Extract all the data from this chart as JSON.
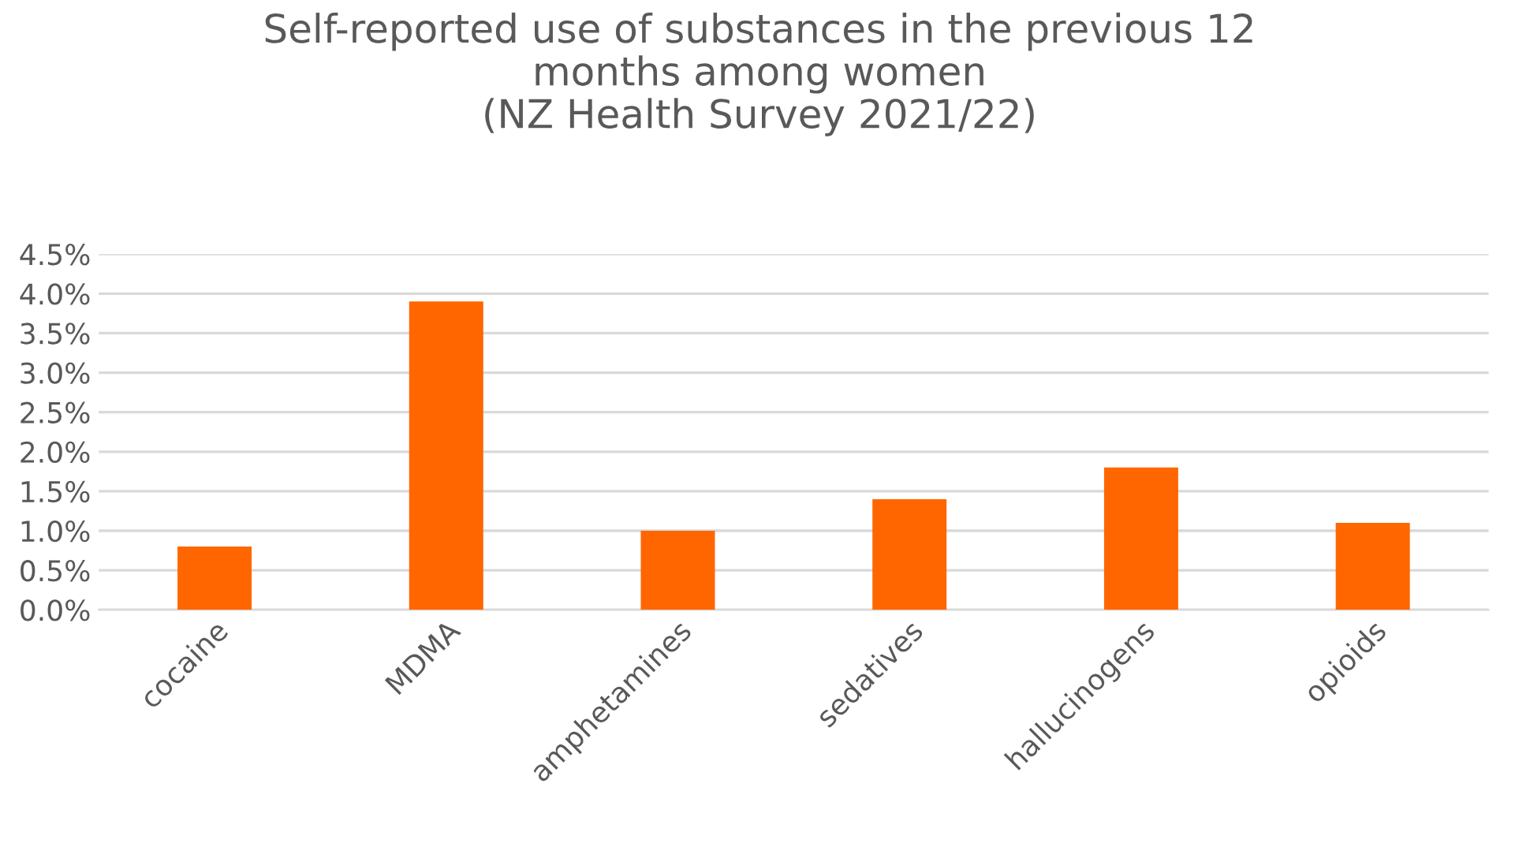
{
  "chart_data": {
    "type": "bar",
    "title": "Self-reported use of substances in the previous 12\nmonths among women\n(NZ Health Survey 2021/22)",
    "categories": [
      "cocaine",
      "MDMA",
      "amphetamines",
      "sedatives",
      "hallucinogens",
      "opioids"
    ],
    "values": [
      0.8,
      3.9,
      1.0,
      1.4,
      1.8,
      1.1
    ],
    "color": "#ff6600",
    "ylim": [
      0,
      4.5
    ],
    "yticks": [
      {
        "value": 0,
        "label": "0.0%"
      },
      {
        "value": 0.5,
        "label": "0.5%"
      },
      {
        "value": 1,
        "label": "1.0%"
      },
      {
        "value": 1.5,
        "label": "1.5%"
      },
      {
        "value": 2,
        "label": "2.0%"
      },
      {
        "value": 2.5,
        "label": "2.5%"
      },
      {
        "value": 3,
        "label": "3.0%"
      },
      {
        "value": 3.5,
        "label": "3.5%"
      },
      {
        "value": 4,
        "label": "4.0%"
      },
      {
        "value": 4.5,
        "label": "4.5%"
      }
    ],
    "grid": "y"
  }
}
